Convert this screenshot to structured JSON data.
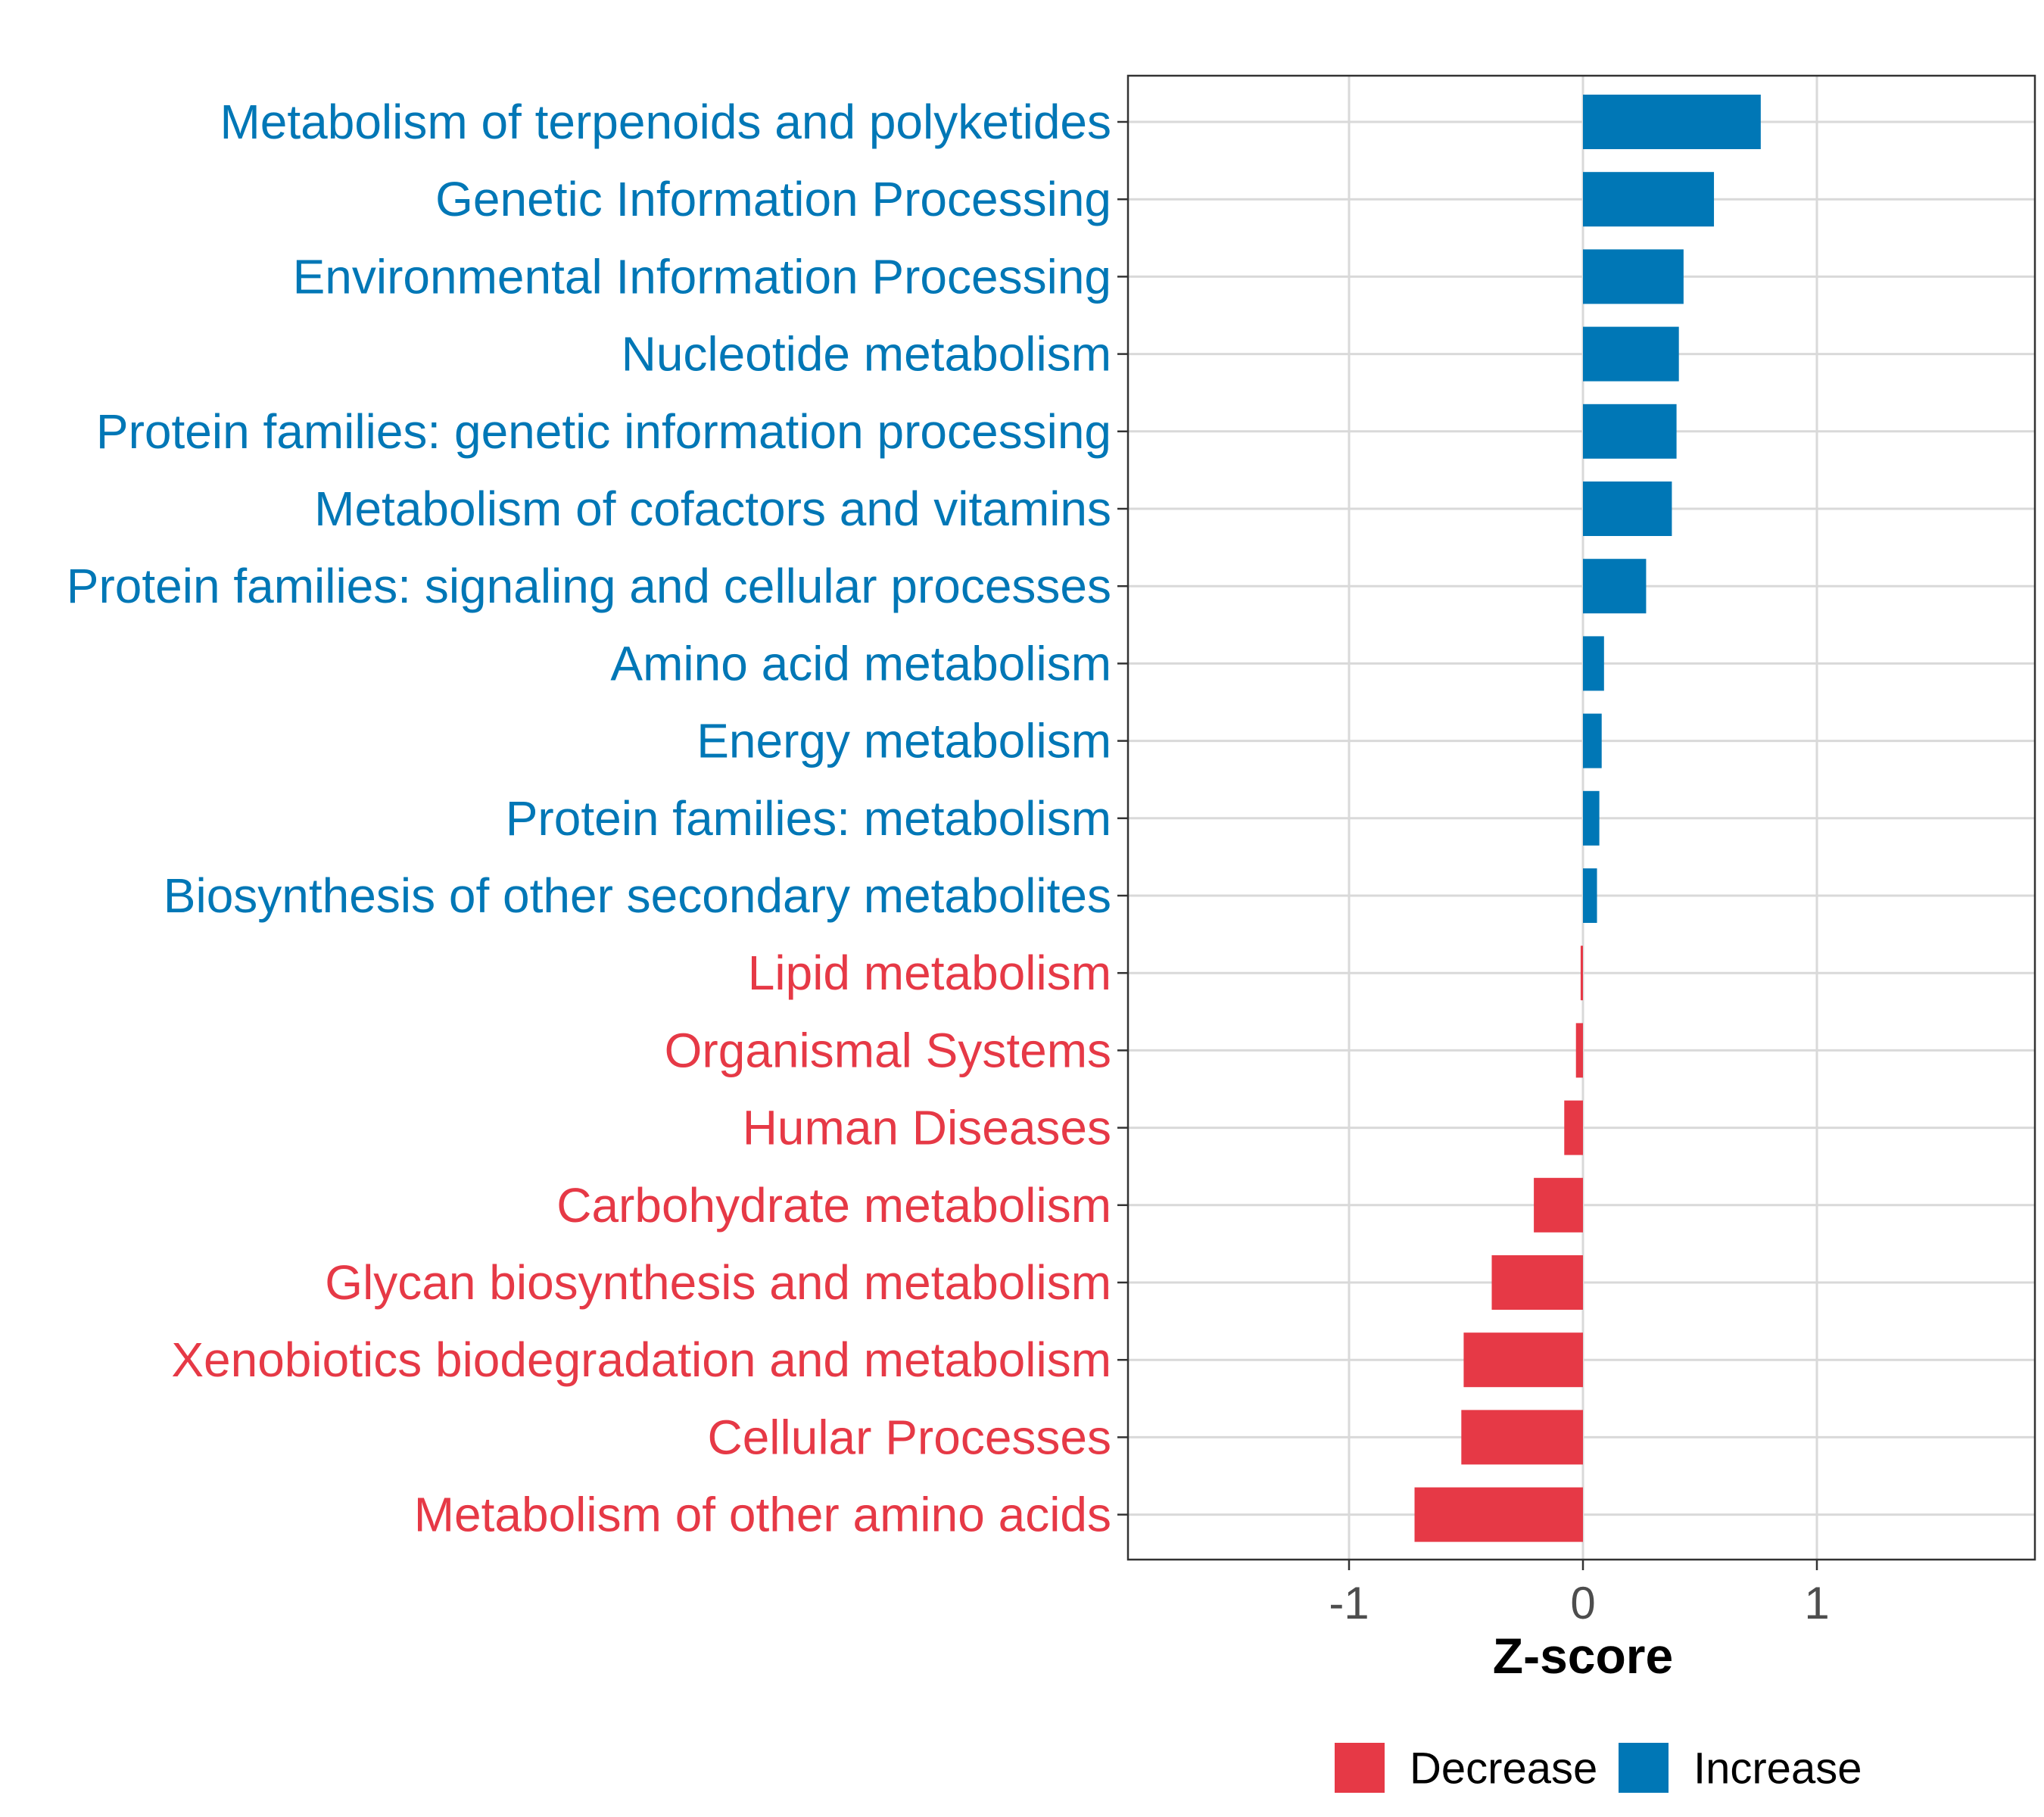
{
  "chart_data": {
    "type": "bar",
    "orientation": "horizontal",
    "xlabel": "Z-score",
    "xlim": [
      -1.9,
      1.9
    ],
    "xticks": [
      -1,
      0,
      1
    ],
    "xtick_labels": [
      "-1",
      "0",
      "1"
    ],
    "grid": true,
    "colors": {
      "Decrease": "#e63946",
      "Increase": "#0077b6"
    },
    "legend": {
      "position": "bottom",
      "entries": [
        "Decrease",
        "Increase"
      ]
    },
    "categories": [
      "Metabolism of terpenoids and polyketides",
      "Genetic Information Processing",
      "Environmental Information Processing",
      "Nucleotide metabolism",
      "Protein families: genetic information processing",
      "Metabolism of cofactors and vitamins",
      "Protein families: signaling and cellular processes",
      "Amino acid metabolism",
      "Energy metabolism",
      "Protein families: metabolism",
      "Biosynthesis of other secondary metabolites",
      "Lipid metabolism",
      "Organismal Systems",
      "Human Diseases",
      "Carbohydrate metabolism",
      "Glycan biosynthesis and metabolism",
      "Xenobiotics biodegradation and metabolism",
      "Cellular Processes",
      "Metabolism of other amino acids"
    ],
    "values": [
      0.76,
      0.56,
      0.43,
      0.41,
      0.4,
      0.38,
      0.27,
      0.09,
      0.08,
      0.07,
      0.06,
      -0.01,
      -0.03,
      -0.08,
      -0.21,
      -0.39,
      -0.51,
      -0.52,
      -0.72
    ],
    "groups": [
      "Increase",
      "Increase",
      "Increase",
      "Increase",
      "Increase",
      "Increase",
      "Increase",
      "Increase",
      "Increase",
      "Increase",
      "Increase",
      "Decrease",
      "Decrease",
      "Decrease",
      "Decrease",
      "Decrease",
      "Decrease",
      "Decrease",
      "Decrease"
    ]
  }
}
